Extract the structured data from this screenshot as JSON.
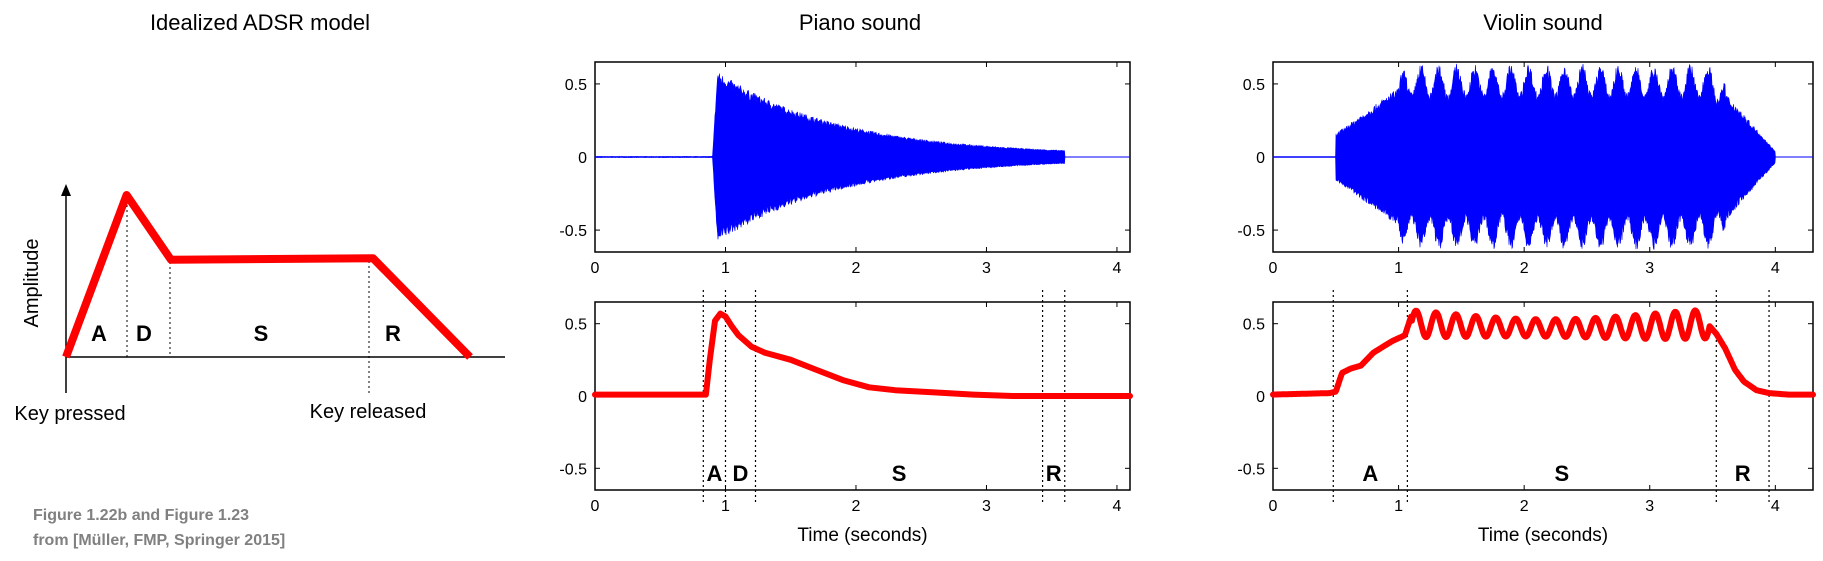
{
  "caption": {
    "line1": "Figure 1.22b and Figure 1.23",
    "line2": "from [Müller, FMP, Springer 2015]"
  },
  "colors": {
    "waveform": "#0000ff",
    "envelope": "#ff0000",
    "axis": "#000000"
  },
  "chart_data": [
    {
      "type": "line",
      "title": "Idealized ADSR model",
      "ylabel": "Amplitude",
      "x_annotations": [
        "Key pressed",
        "Key released"
      ],
      "segments": [
        "A",
        "D",
        "S",
        "R"
      ],
      "x": [
        0,
        0.15,
        0.26,
        0.76,
        1.0
      ],
      "y": [
        0,
        1.0,
        0.6,
        0.61,
        0
      ]
    },
    {
      "type": "area",
      "title": "Piano sound",
      "series": [
        {
          "values": {
            "onset": 0.9,
            "peak_amplitude": 0.6,
            "decay_end": 3.6
          }
        }
      ],
      "xlim": [
        0,
        4.1
      ],
      "ylim": [
        -0.65,
        0.65
      ],
      "xticks": [
        "0",
        "1",
        "2",
        "3",
        "4"
      ],
      "yticks": [
        "0.5",
        "0",
        "-0.5"
      ]
    },
    {
      "type": "line",
      "xlabel": "Time (seconds)",
      "segments": [
        "A",
        "D",
        "S",
        "R"
      ],
      "boundaries": [
        0.83,
        1.0,
        1.23,
        3.43,
        3.6
      ],
      "x": [
        0,
        0.85,
        0.88,
        0.92,
        0.96,
        1.0,
        1.05,
        1.1,
        1.2,
        1.3,
        1.5,
        1.7,
        1.9,
        2.1,
        2.3,
        2.6,
        2.9,
        3.2,
        3.5,
        3.8,
        4.1
      ],
      "y": [
        0.01,
        0.01,
        0.25,
        0.52,
        0.57,
        0.55,
        0.48,
        0.42,
        0.34,
        0.3,
        0.25,
        0.18,
        0.11,
        0.06,
        0.04,
        0.025,
        0.01,
        0,
        0,
        0,
        0
      ],
      "xlim": [
        0,
        4.1
      ],
      "ylim": [
        -0.65,
        0.65
      ],
      "xticks": [
        "0",
        "1",
        "2",
        "3",
        "4"
      ],
      "yticks": [
        "0.5",
        "0",
        "-0.5"
      ]
    },
    {
      "type": "area",
      "title": "Violin sound",
      "series": [
        {
          "values": {
            "onset": 0.5,
            "peak_amplitude": 0.65,
            "release_end": 4.0
          }
        }
      ],
      "xlim": [
        0,
        4.3
      ],
      "ylim": [
        -0.65,
        0.65
      ],
      "xticks": [
        "0",
        "1",
        "2",
        "3",
        "4"
      ],
      "yticks": [
        "0.5",
        "0",
        "-0.5"
      ]
    },
    {
      "type": "line",
      "xlabel": "Time (seconds)",
      "segments": [
        "A",
        "S",
        "R"
      ],
      "boundaries": [
        0.48,
        1.07,
        3.53,
        3.95
      ],
      "x": [
        0,
        0.45,
        0.5,
        0.55,
        0.62,
        0.7,
        0.8,
        0.95,
        1.05,
        1.1,
        3.48,
        3.53,
        3.6,
        3.68,
        3.75,
        3.85,
        3.95,
        4.1,
        4.3
      ],
      "y": [
        0.01,
        0.02,
        0.03,
        0.16,
        0.19,
        0.21,
        0.3,
        0.38,
        0.42,
        0.55,
        0.48,
        0.43,
        0.33,
        0.18,
        0.1,
        0.04,
        0.02,
        0.01,
        0.01
      ],
      "xlim": [
        0,
        4.3
      ],
      "ylim": [
        -0.65,
        0.65
      ],
      "xticks": [
        "0",
        "1",
        "2",
        "3",
        "4"
      ],
      "yticks": [
        "0.5",
        "0",
        "-0.5"
      ]
    }
  ]
}
